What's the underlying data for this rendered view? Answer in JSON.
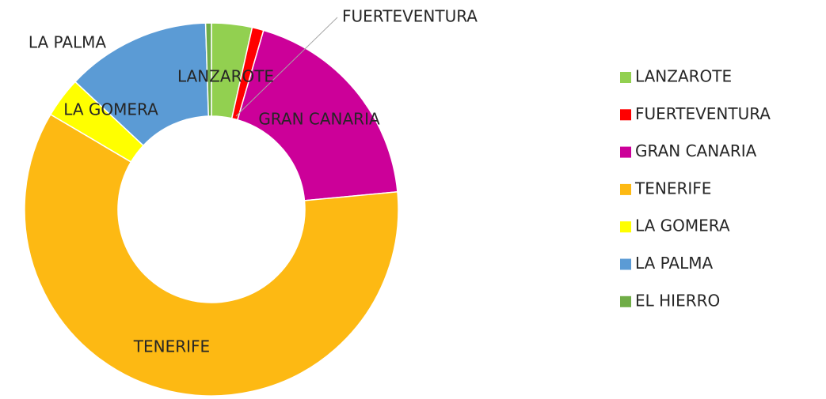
{
  "chart_data": {
    "type": "donut",
    "categories": [
      "LANZAROTE",
      "FUERTEVENTURA",
      "GRAN CANARIA",
      "TENERIFE",
      "LA GOMERA",
      "LA PALMA",
      "EL HIERRO"
    ],
    "values": [
      3.5,
      1,
      19,
      60,
      3.5,
      12.5,
      0.5
    ],
    "colors": [
      "#92d050",
      "#ff0000",
      "#cc0099",
      "#fdb913",
      "#ffff00",
      "#5b9bd5",
      "#70ad47"
    ],
    "legend": "right"
  }
}
